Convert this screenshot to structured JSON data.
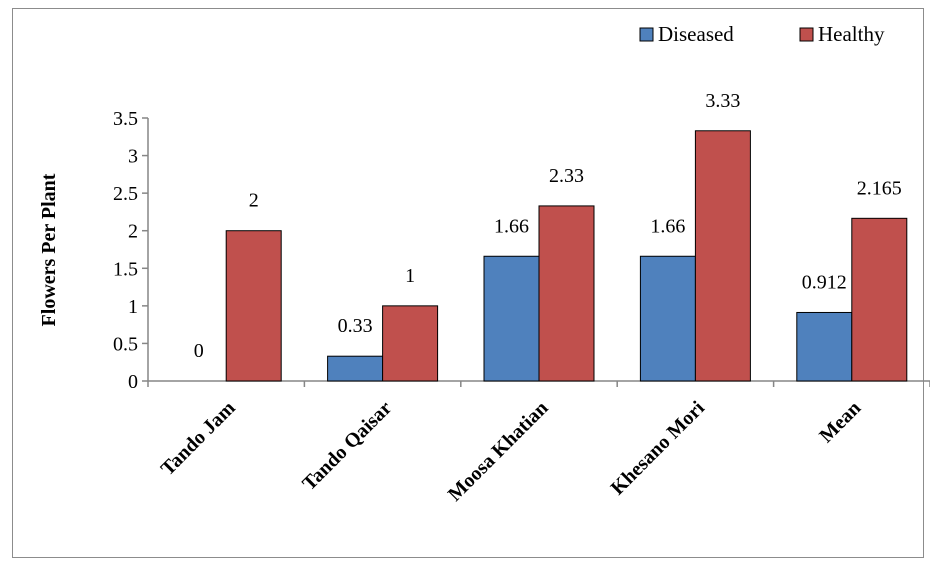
{
  "chart_data": {
    "type": "bar",
    "title": "",
    "xlabel": "",
    "ylabel": "Flowers Per Plant",
    "categories": [
      "Tando Jam",
      "Tando Qaisar",
      "Moosa Khatian",
      "Khesano Mori",
      "Mean"
    ],
    "series": [
      {
        "name": "Diseased",
        "values": [
          0,
          0.33,
          1.66,
          1.66,
          0.912
        ],
        "labels": [
          "0",
          "0.33",
          "1.66",
          "1.66",
          "0.912"
        ],
        "color": "#4f81bd"
      },
      {
        "name": "Healthy",
        "values": [
          2,
          1,
          2.33,
          3.33,
          2.165
        ],
        "labels": [
          "2",
          "1",
          "2.33",
          "3.33",
          "2.165"
        ],
        "color": "#c0504d"
      }
    ],
    "ylim": [
      0,
      3.5
    ],
    "yticks": [
      "0",
      "0.5",
      "1",
      "1.5",
      "2",
      "2.5",
      "3",
      "3.5"
    ],
    "grid": false,
    "legend_position": "top-right"
  }
}
